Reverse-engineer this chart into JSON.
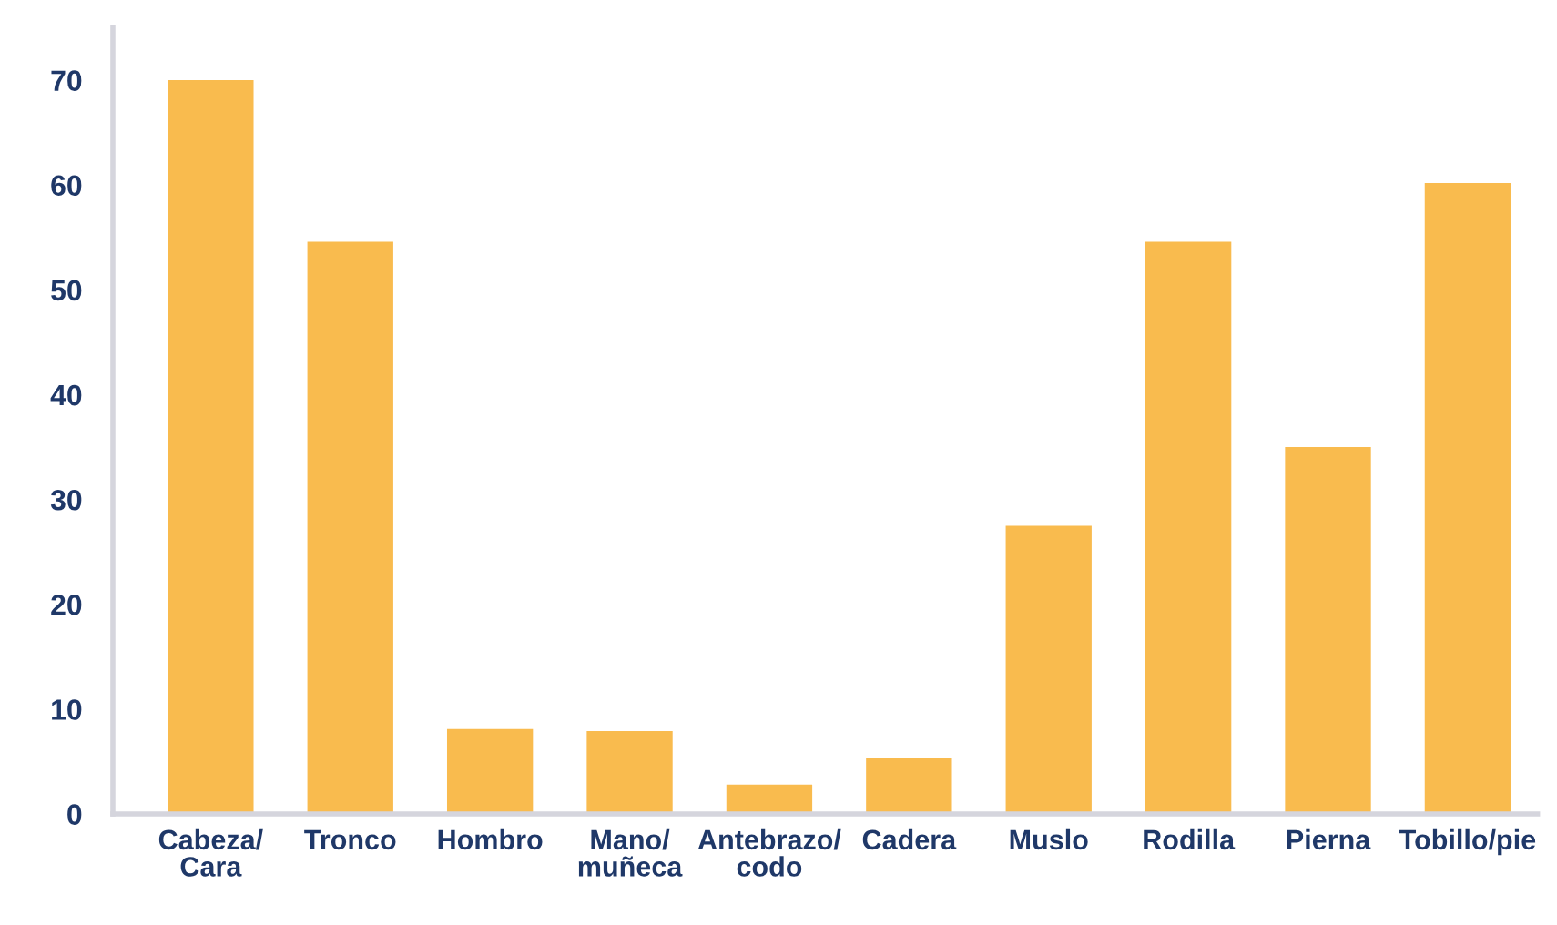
{
  "chart_data": {
    "type": "bar",
    "categories": [
      "Cabeza/\nCara",
      "Tronco",
      "Hombro",
      "Mano/\nmuñeca",
      "Antebrazo/\ncodo",
      "Cadera",
      "Muslo",
      "Rodilla",
      "Pierna",
      "Tobillo/pie"
    ],
    "values": [
      70,
      54.6,
      8.1,
      7.9,
      2.8,
      5.3,
      27.5,
      54.6,
      35,
      60.2
    ],
    "color": "#f9bb4e",
    "ylim": [
      0,
      75
    ],
    "yticks": [
      0,
      10,
      20,
      30,
      40,
      50,
      60,
      70
    ]
  }
}
